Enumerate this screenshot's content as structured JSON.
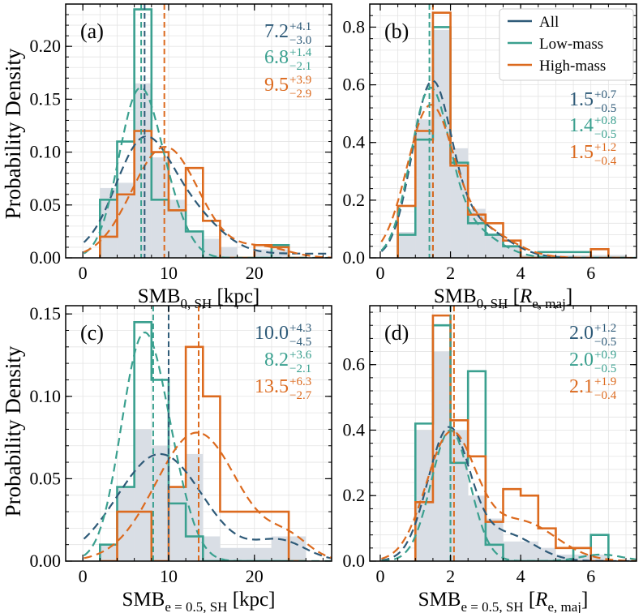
{
  "ylabel": "Probability Density",
  "colors": {
    "all": "#2e5a78",
    "low": "#3aa08f",
    "high": "#dc6a1e",
    "fill": "#d9dee5"
  },
  "legend": [
    "All",
    "Low-mass",
    "High-mass"
  ],
  "chart_data": [
    {
      "type": "bar",
      "panel": "(a)",
      "xlabel": {
        "main": "SMB",
        "sub": "0, SH",
        "unit": "[kpc]"
      },
      "xlim": [
        -2,
        29
      ],
      "ylim": [
        0,
        0.24
      ],
      "xticks": [
        0,
        10,
        20
      ],
      "yticks": [
        0,
        0.05,
        0.1,
        0.15,
        0.2
      ],
      "ytick_labels": [
        "0.00",
        "0.05",
        "0.10",
        "0.15",
        "0.20"
      ],
      "bin_edges": [
        2,
        4,
        6,
        8,
        10,
        12,
        14,
        16,
        18,
        20,
        22,
        24,
        26
      ],
      "series": [
        {
          "name": "All",
          "values": [
            0.066,
            0.071,
            0.165,
            0.095,
            0.055,
            0.025,
            0.018,
            0.01,
            0.0,
            0.008,
            0.008,
            0.0
          ]
        },
        {
          "name": "Low-mass",
          "values": [
            0.055,
            0.11,
            0.235,
            0.055,
            0.045,
            0.025,
            0.0,
            0.0,
            0.0,
            0.0,
            0.012,
            0.0
          ]
        },
        {
          "name": "High-mass",
          "values": [
            0.02,
            0.06,
            0.12,
            0.1,
            0.045,
            0.085,
            0.035,
            0.0,
            0.0,
            0.012,
            0.01,
            0.0
          ]
        }
      ],
      "kde": [
        {
          "name": "All",
          "mu": 6.9,
          "sigma": 3.2,
          "mu2": 12.5,
          "sigma2": 3.5,
          "amp": 0.1,
          "amp2": 0.035,
          "tail": 0.004
        },
        {
          "name": "Low-mass",
          "mu": 6.6,
          "sigma": 2.4,
          "amp": 0.157,
          "mu2": 10.5,
          "sigma2": 2.0,
          "amp2": 0.025
        },
        {
          "name": "High-mass",
          "mu": 9.6,
          "sigma": 3.9,
          "amp": 0.105,
          "mu2": 21,
          "sigma2": 3.0,
          "amp2": 0.01
        }
      ],
      "medians": [
        7.2,
        6.8,
        9.5
      ],
      "annotations": [
        {
          "value": "7.2",
          "plus": "+4.1",
          "minus": "−3.0"
        },
        {
          "value": "6.8",
          "plus": "+1.4",
          "minus": "−2.1"
        },
        {
          "value": "9.5",
          "plus": "+3.9",
          "minus": "−2.9"
        }
      ]
    },
    {
      "type": "bar",
      "panel": "(b)",
      "xlabel": {
        "main": "SMB",
        "sub": "0, SH",
        "unit": "[",
        "unitVar": "R",
        "unitSub": "e, maj",
        "unitClose": "]"
      },
      "xlim": [
        -0.3,
        7.3
      ],
      "ylim": [
        0,
        0.88
      ],
      "xticks": [
        0,
        2,
        4,
        6
      ],
      "yticks": [
        0,
        0.2,
        0.4,
        0.6,
        0.8
      ],
      "ytick_labels": [
        "0.0",
        "0.2",
        "0.4",
        "0.6",
        "0.8"
      ],
      "bin_edges": [
        0.5,
        1.0,
        1.5,
        2.0,
        2.5,
        3.0,
        3.5,
        4.0,
        4.5,
        5.0,
        5.5,
        6.0,
        6.5,
        7.0
      ],
      "series": [
        {
          "name": "All",
          "values": [
            0.09,
            0.48,
            0.79,
            0.38,
            0.17,
            0.085,
            0.045,
            0.01,
            0.01,
            0.01,
            0.01,
            0.01,
            0.01
          ]
        },
        {
          "name": "Low-mass",
          "values": [
            0.08,
            0.41,
            0.8,
            0.33,
            0.12,
            0.08,
            0.04,
            0.0,
            0.02,
            0.02,
            0.02,
            0.0,
            0.0
          ]
        },
        {
          "name": "High-mass",
          "values": [
            0.18,
            0.44,
            0.85,
            0.32,
            0.15,
            0.12,
            0.06,
            0.0,
            0.0,
            0.0,
            0.0,
            0.03,
            0.0
          ]
        }
      ],
      "kde": [
        {
          "name": "All",
          "mu": 1.45,
          "sigma": 0.55,
          "amp": 0.56,
          "mu2": 2.6,
          "sigma2": 0.9,
          "amp2": 0.12
        },
        {
          "name": "Low-mass",
          "mu": 1.4,
          "sigma": 0.55,
          "amp": 0.55,
          "mu2": 2.5,
          "sigma2": 0.8,
          "amp2": 0.1
        },
        {
          "name": "High-mass",
          "mu": 1.4,
          "sigma": 0.65,
          "amp": 0.5,
          "mu2": 2.8,
          "sigma2": 0.9,
          "amp2": 0.1
        }
      ],
      "medians": [
        1.5,
        1.4,
        1.5
      ],
      "annotations": [
        {
          "value": "1.5",
          "plus": "+0.7",
          "minus": "−0.5"
        },
        {
          "value": "1.4",
          "plus": "+0.8",
          "minus": "−0.5"
        },
        {
          "value": "1.5",
          "plus": "+1.2",
          "minus": "−0.4"
        }
      ]
    },
    {
      "type": "bar",
      "panel": "(c)",
      "xlabel": {
        "main": "SMB",
        "sub": "e = 0.5, SH",
        "unit": "[kpc]"
      },
      "xlim": [
        -2,
        29
      ],
      "ylim": [
        0,
        0.155
      ],
      "xticks": [
        0,
        10,
        20
      ],
      "yticks": [
        0,
        0.05,
        0.1,
        0.15
      ],
      "ytick_labels": [
        "0.00",
        "0.05",
        "0.10",
        "0.15"
      ],
      "bin_edges": [
        2,
        4,
        6,
        8,
        10,
        12,
        14,
        16,
        18,
        20,
        22,
        24,
        26
      ],
      "series": [
        {
          "name": "All",
          "values": [
            0.01,
            0.045,
            0.08,
            0.07,
            0.045,
            0.065,
            0.015,
            0.008,
            0.008,
            0.008,
            0.015,
            0.015
          ]
        },
        {
          "name": "Low-mass",
          "values": [
            0.01,
            0.045,
            0.145,
            0.11,
            0.035,
            0.015,
            0.0,
            0.0,
            0.0,
            0.0,
            0.0,
            0.0
          ]
        },
        {
          "name": "High-mass",
          "values": [
            0.0,
            0.03,
            0.03,
            0.0,
            0.045,
            0.13,
            0.1,
            0.03,
            0.03,
            0.03,
            0.03,
            0.0
          ]
        }
      ],
      "kde": [
        {
          "name": "All",
          "mu": 9.0,
          "sigma": 5.0,
          "amp": 0.065,
          "mu2": 23,
          "sigma2": 3.0,
          "amp2": 0.012
        },
        {
          "name": "Low-mass",
          "mu": 6.9,
          "sigma": 2.5,
          "amp": 0.13,
          "mu2": 10.5,
          "sigma2": 2.2,
          "amp2": 0.03
        },
        {
          "name": "High-mass",
          "mu": 13.3,
          "sigma": 4.8,
          "amp": 0.078,
          "mu2": 24,
          "sigma2": 2.5,
          "amp2": 0.012
        }
      ],
      "medians": [
        10.0,
        8.2,
        13.5
      ],
      "annotations": [
        {
          "value": "10.0",
          "plus": "+4.3",
          "minus": "−4.5"
        },
        {
          "value": "8.2",
          "plus": "+3.6",
          "minus": "−2.1"
        },
        {
          "value": "13.5",
          "plus": "+6.3",
          "minus": "−2.7"
        }
      ]
    },
    {
      "type": "bar",
      "panel": "(d)",
      "xlabel": {
        "main": "SMB",
        "sub": "e = 0.5, SH",
        "unit": "[",
        "unitVar": "R",
        "unitSub": "e, maj",
        "unitClose": "]"
      },
      "xlim": [
        -0.3,
        7.3
      ],
      "ylim": [
        0,
        0.78
      ],
      "xticks": [
        0,
        2,
        4,
        6
      ],
      "yticks": [
        0,
        0.2,
        0.4,
        0.6
      ],
      "ytick_labels": [
        "0.0",
        "0.2",
        "0.4",
        "0.6"
      ],
      "bin_edges": [
        1.0,
        1.5,
        2.0,
        2.5,
        3.0,
        3.5,
        4.0,
        4.5,
        5.0,
        5.5,
        6.0,
        6.5
      ],
      "series": [
        {
          "name": "All",
          "values": [
            0.4,
            0.64,
            0.4,
            0.2,
            0.13,
            0.06,
            0.06,
            0.04,
            0.02,
            0.02,
            0.02
          ]
        },
        {
          "name": "Low-mass",
          "values": [
            0.42,
            0.72,
            0.3,
            0.58,
            0.05,
            0.0,
            0.0,
            0.0,
            0.0,
            0.04,
            0.08
          ]
        },
        {
          "name": "High-mass",
          "values": [
            0.18,
            0.75,
            0.43,
            0.32,
            0.12,
            0.22,
            0.2,
            0.1,
            0.04,
            0.04,
            0.0
          ]
        }
      ],
      "kde": [
        {
          "name": "All",
          "mu": 1.95,
          "sigma": 0.6,
          "amp": 0.4,
          "mu2": 3.6,
          "sigma2": 0.8,
          "amp2": 0.08
        },
        {
          "name": "Low-mass",
          "mu": 2.0,
          "sigma": 0.55,
          "amp": 0.4,
          "mu2": 6.3,
          "sigma2": 0.6,
          "amp2": 0.02
        },
        {
          "name": "High-mass",
          "mu": 2.0,
          "sigma": 0.7,
          "amp": 0.38,
          "mu2": 4.0,
          "sigma2": 1.0,
          "amp2": 0.12
        }
      ],
      "medians": [
        2.0,
        2.0,
        2.1
      ],
      "annotations": [
        {
          "value": "2.0",
          "plus": "+1.2",
          "minus": "−0.5"
        },
        {
          "value": "2.0",
          "plus": "+0.9",
          "minus": "−0.5"
        },
        {
          "value": "2.1",
          "plus": "+1.9",
          "minus": "−0.4"
        }
      ]
    }
  ]
}
